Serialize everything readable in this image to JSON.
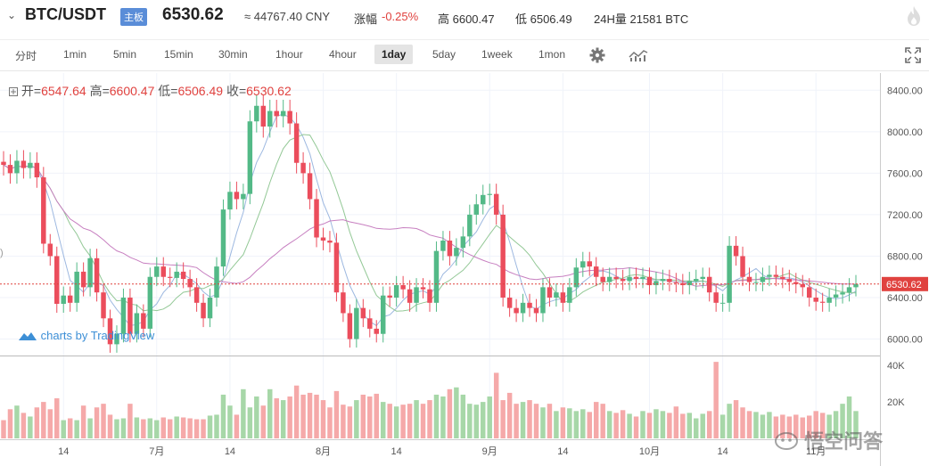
{
  "header": {
    "symbol": "BTC/USDT",
    "badge": "主板",
    "price": "6530.62",
    "cny": "≈ 44767.40 CNY",
    "change_label": "涨幅",
    "change_value": "-0.25%",
    "high": "高 6600.47",
    "low": "低 6506.49",
    "volume": "24H量 21581 BTC"
  },
  "toolbar": {
    "intervals": [
      "分时",
      "1min",
      "5min",
      "15min",
      "30min",
      "1hour",
      "4hour",
      "1day",
      "5day",
      "1week",
      "1mon"
    ],
    "active": "1day",
    "settings_icon": "gear-icon",
    "indicator_icon": "indicator-icon",
    "fullscreen_icon": "fullscreen-icon"
  },
  "ohlc": {
    "open_label": "开=",
    "open": "6547.64",
    "high_label": "高=",
    "high": "6600.47",
    "low_label": "低=",
    "low": "6506.49",
    "close_label": "收=",
    "close": "6530.62"
  },
  "branding": {
    "tradingview": "charts by TradingView",
    "watermark": "悟空问答"
  },
  "colors": {
    "up": "#53b987",
    "down": "#eb4d5c",
    "up_vol": "#a7d7a8",
    "down_vol": "#f5a9a9",
    "ma5": "#9db8e0",
    "ma10": "#93c896",
    "ma30": "#c77fc0",
    "price_line": "#e0423f"
  },
  "chart_data": {
    "type": "candlestick",
    "interval": "1day",
    "current_price": 6530.62,
    "price_axis": {
      "min": 5850,
      "max": 8480,
      "ticks": [
        6000,
        6400,
        6800,
        7200,
        7600,
        8000,
        8400
      ],
      "tick_labels": [
        "6000.00",
        "6400.00",
        "6800.00",
        "7200.00",
        "7600.00",
        "8000.00",
        "8400.00"
      ]
    },
    "volume_axis": {
      "min": 0,
      "max": 45000,
      "ticks": [
        20000,
        40000
      ],
      "tick_labels": [
        "20K",
        "40K"
      ]
    },
    "x_axis_labels": [
      {
        "label": "14",
        "index": 9
      },
      {
        "label": "7月",
        "index": 23
      },
      {
        "label": "14",
        "index": 34
      },
      {
        "label": "8月",
        "index": 48
      },
      {
        "label": "14",
        "index": 59
      },
      {
        "label": "9月",
        "index": 73
      },
      {
        "label": "14",
        "index": 84
      },
      {
        "label": "10月",
        "index": 97
      },
      {
        "label": "14",
        "index": 108
      },
      {
        "label": "11月",
        "index": 122
      }
    ],
    "closes": [
      7680,
      7600,
      7720,
      7650,
      7700,
      7560,
      6920,
      6800,
      6340,
      6420,
      6350,
      6650,
      6500,
      6780,
      6450,
      6200,
      5950,
      6050,
      6400,
      6050,
      6250,
      6100,
      6600,
      6700,
      6600,
      6590,
      6650,
      6580,
      6500,
      6350,
      6200,
      6400,
      6700,
      7250,
      7420,
      7350,
      7400,
      8100,
      8250,
      8050,
      8200,
      8150,
      8200,
      8080,
      7700,
      7600,
      7350,
      6980,
      6950,
      6930,
      6450,
      6250,
      6000,
      6300,
      6200,
      6100,
      6050,
      6420,
      6400,
      6520,
      6480,
      6350,
      6500,
      6480,
      6350,
      6850,
      6950,
      6800,
      6880,
      6990,
      7200,
      7300,
      7390,
      7400,
      7200,
      6400,
      6300,
      6250,
      6350,
      6300,
      6250,
      6500,
      6400,
      6450,
      6350,
      6500,
      6690,
      6750,
      6700,
      6600,
      6550,
      6600,
      6580,
      6560,
      6600,
      6580,
      6600,
      6520,
      6560,
      6580,
      6550,
      6540,
      6520,
      6560,
      6580,
      6600,
      6450,
      6350,
      6350,
      6900,
      6800,
      6600,
      6550,
      6550,
      6600,
      6620,
      6600,
      6580,
      6550,
      6530,
      6500,
      6400,
      6360,
      6350,
      6400,
      6430,
      6450,
      6500,
      6530
    ],
    "volumes": [
      10000,
      16000,
      18000,
      14000,
      12000,
      17000,
      20000,
      16000,
      22000,
      10000,
      11000,
      10000,
      18000,
      11000,
      17000,
      19000,
      13000,
      10500,
      11000,
      19000,
      11500,
      10500,
      11000,
      10000,
      11500,
      10500,
      12000,
      11500,
      11000,
      10500,
      10500,
      12500,
      13000,
      24000,
      18000,
      13000,
      27000,
      17000,
      23000,
      18000,
      27000,
      22000,
      21000,
      23000,
      29000,
      24000,
      25000,
      24000,
      21000,
      17000,
      26000,
      18500,
      17500,
      21000,
      24000,
      23000,
      24500,
      20000,
      19000,
      17500,
      18500,
      19000,
      21000,
      19000,
      21000,
      24000,
      23000,
      27000,
      28000,
      24000,
      19000,
      18500,
      20000,
      23000,
      36000,
      21000,
      25000,
      19000,
      20000,
      21000,
      19000,
      17000,
      19000,
      15000,
      17000,
      16500,
      15000,
      16000,
      14500,
      20000,
      19000,
      15000,
      14000,
      15500,
      13500,
      12000,
      15000,
      14000,
      16000,
      15000,
      14000,
      17500,
      13500,
      14000,
      11000,
      13500,
      15000,
      42000,
      13000,
      19000,
      21000,
      17000,
      15000,
      14500,
      13000,
      14500,
      12000,
      13000,
      12000,
      13000,
      11500,
      12500,
      15000,
      14000,
      13000,
      15000,
      19000,
      23000,
      15000
    ]
  }
}
